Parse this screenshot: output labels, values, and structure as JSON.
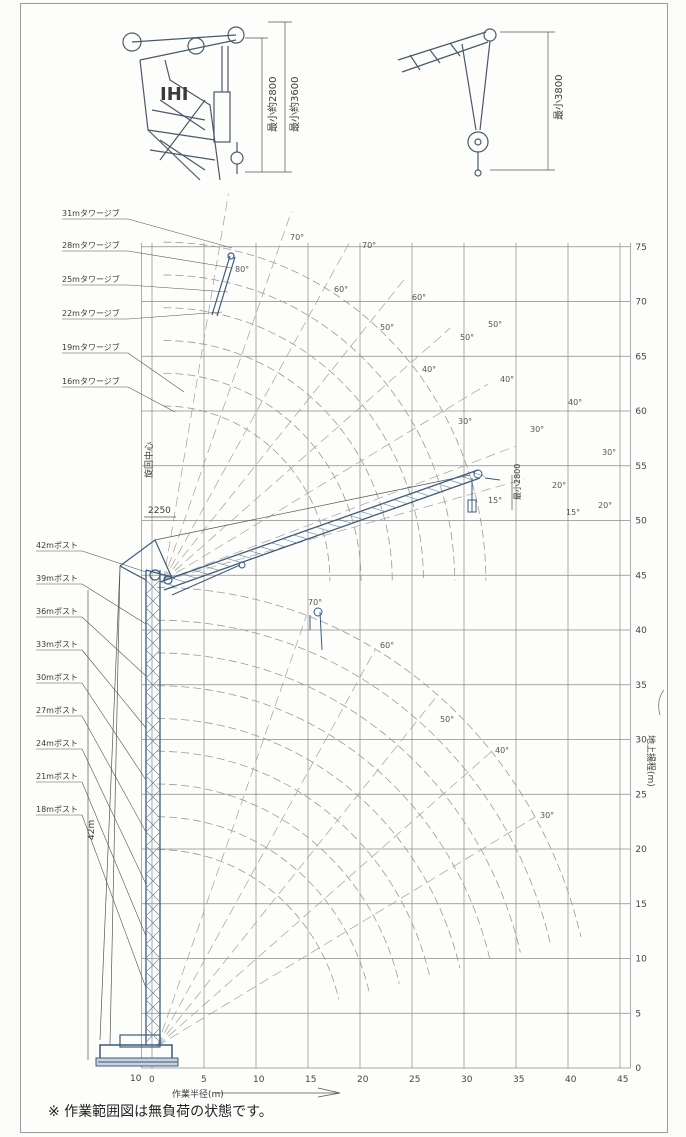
{
  "detail_top_left": {
    "brand": "IHI",
    "dim_2800": "最小約2800",
    "dim_3600": "最小約3600"
  },
  "detail_top_right": {
    "dim_3800": "最小3800"
  },
  "jib_labels": [
    "31mタワージブ",
    "28mタワージブ",
    "25mタワージブ",
    "22mタワージブ",
    "19mタワージブ",
    "16mタワージブ"
  ],
  "post_labels": [
    "42mポスト",
    "39mポスト",
    "36mポスト",
    "33mポスト",
    "30mポスト",
    "27mポスト",
    "24mポスト",
    "21mポスト",
    "18mポスト"
  ],
  "x_axis": {
    "ticks": [
      "0",
      "5",
      "10",
      "15",
      "20",
      "25",
      "30",
      "35",
      "40",
      "45"
    ],
    "left_tick": "10",
    "label": "作業半径(m)"
  },
  "y_axis": {
    "ticks": [
      "0",
      "5",
      "10",
      "15",
      "20",
      "25",
      "30",
      "35",
      "40",
      "45",
      "50",
      "55",
      "60",
      "65",
      "70",
      "75"
    ],
    "label": "地上揚程(m)"
  },
  "dims": {
    "offset": "2250",
    "slew_center": "旋回中心",
    "post_height": "42m",
    "tip_min": "最小2800"
  },
  "angle_labels": [
    "80°",
    "70°",
    "70°",
    "60°",
    "60°",
    "50°",
    "50°",
    "50°",
    "40°",
    "40°",
    "40°",
    "30°",
    "30°",
    "30°",
    "20°",
    "20°",
    "15°",
    "15°",
    "70°",
    "60°",
    "50°",
    "40°",
    "30°"
  ],
  "note": "※ 作業範囲図は無負荷の状態です。",
  "colors": {
    "grid": "#7a7a7a",
    "arc": "#9a9a9a",
    "crane": "#3d5a7a",
    "line": "#555555"
  }
}
